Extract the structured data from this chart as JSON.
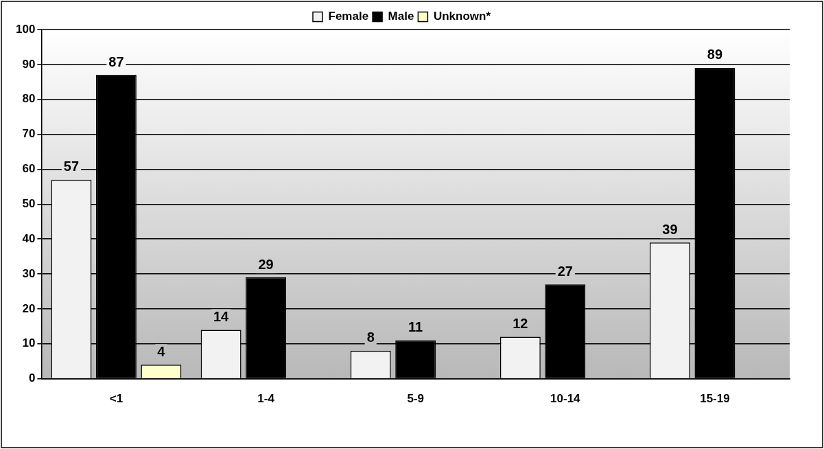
{
  "chart_data": {
    "type": "bar",
    "categories": [
      "<1",
      "1-4",
      "5-9",
      "10-14",
      "15-19"
    ],
    "series": [
      {
        "name": "Female",
        "color": "#f2f2f2",
        "values": [
          57,
          14,
          8,
          12,
          39
        ]
      },
      {
        "name": "Male",
        "color": "#000000",
        "values": [
          87,
          29,
          11,
          27,
          89
        ]
      },
      {
        "name": "Unknown*",
        "color": "#ffffcc",
        "values": [
          4,
          null,
          null,
          null,
          null
        ]
      }
    ],
    "ylim": [
      0,
      100
    ],
    "yticks": [
      0,
      10,
      20,
      30,
      40,
      50,
      60,
      70,
      80,
      90,
      100
    ],
    "grid": "y",
    "legend": "top",
    "data_labels": true
  }
}
